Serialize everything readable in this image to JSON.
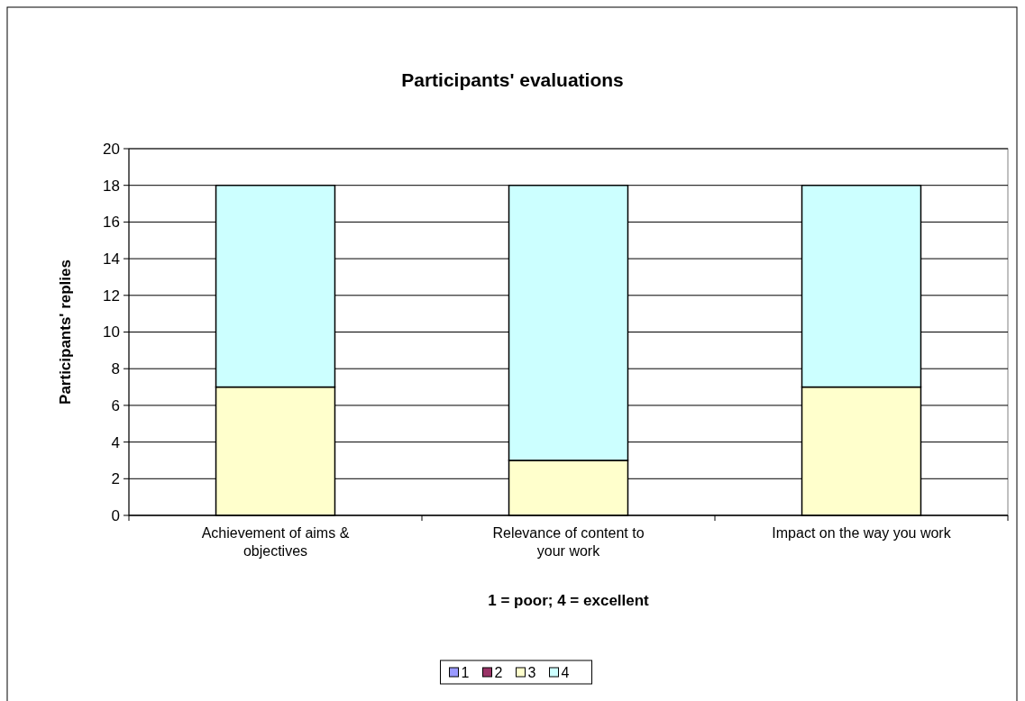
{
  "chart_data": {
    "type": "bar",
    "title": "Participants' evaluations",
    "xlabel": "1 = poor; 4 = excellent",
    "ylabel": "Participants' replies",
    "categories": [
      "Achievement of aims & objectives",
      "Relevance of content to your work",
      "Impact on the way you work"
    ],
    "stacked": true,
    "series": [
      {
        "name": "1",
        "color": "#9999ff",
        "values": [
          0,
          0,
          0
        ]
      },
      {
        "name": "2",
        "color": "#993366",
        "values": [
          0,
          0,
          0
        ]
      },
      {
        "name": "3",
        "color": "#ffffcc",
        "values": [
          7,
          3,
          7
        ]
      },
      {
        "name": "4",
        "color": "#ccffff",
        "values": [
          11,
          15,
          11
        ]
      }
    ],
    "ylim": [
      0,
      20
    ],
    "yticks": [
      0,
      2,
      4,
      6,
      8,
      10,
      12,
      14,
      16,
      18,
      20
    ],
    "grid": "y",
    "legend": "bottom"
  }
}
